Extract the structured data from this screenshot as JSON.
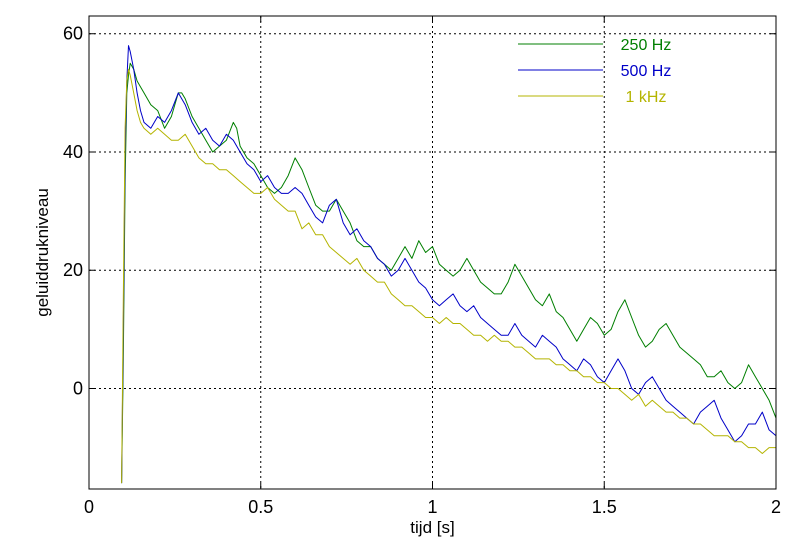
{
  "chart_data": {
    "type": "line",
    "title": "",
    "xlabel": "tijd  [s]",
    "ylabel": "geluiddrukniveau",
    "xlim": [
      0,
      2
    ],
    "ylim": [
      -17,
      63
    ],
    "grid": true,
    "legend_position": "top-right",
    "x_ticks": [
      0,
      0.5,
      1,
      1.5,
      2
    ],
    "x_tick_labels": [
      "0",
      "0.5",
      "1",
      "1.5",
      "2"
    ],
    "y_ticks": [
      0,
      20,
      40,
      60
    ],
    "y_tick_labels": [
      "0",
      "20",
      "40",
      "60"
    ],
    "series": [
      {
        "name": "250 Hz",
        "color": "#007f00",
        "x": [
          0.095,
          0.1,
          0.105,
          0.11,
          0.115,
          0.12,
          0.13,
          0.14,
          0.15,
          0.16,
          0.18,
          0.2,
          0.22,
          0.24,
          0.26,
          0.27,
          0.28,
          0.3,
          0.32,
          0.34,
          0.36,
          0.38,
          0.4,
          0.42,
          0.43,
          0.44,
          0.46,
          0.48,
          0.5,
          0.52,
          0.54,
          0.56,
          0.58,
          0.6,
          0.62,
          0.64,
          0.66,
          0.68,
          0.7,
          0.72,
          0.74,
          0.76,
          0.78,
          0.8,
          0.82,
          0.84,
          0.86,
          0.88,
          0.9,
          0.92,
          0.94,
          0.96,
          0.98,
          1.0,
          1.02,
          1.04,
          1.06,
          1.08,
          1.1,
          1.12,
          1.14,
          1.16,
          1.18,
          1.2,
          1.22,
          1.24,
          1.26,
          1.28,
          1.3,
          1.32,
          1.34,
          1.36,
          1.38,
          1.4,
          1.42,
          1.44,
          1.46,
          1.48,
          1.5,
          1.52,
          1.54,
          1.56,
          1.58,
          1.6,
          1.62,
          1.64,
          1.66,
          1.68,
          1.7,
          1.72,
          1.74,
          1.76,
          1.78,
          1.8,
          1.82,
          1.84,
          1.86,
          1.88,
          1.9,
          1.92,
          1.94,
          1.96,
          1.98,
          2.0
        ],
        "y": [
          -16,
          5,
          35,
          50,
          53,
          55,
          54,
          52,
          51,
          50,
          48,
          47,
          44,
          46,
          50,
          50,
          49,
          46,
          44,
          42,
          40,
          41,
          42,
          45,
          44,
          41,
          39,
          38,
          36,
          34,
          33,
          34,
          36,
          39,
          37,
          34,
          31,
          30,
          30,
          32,
          30,
          28,
          25,
          24,
          24,
          22,
          21,
          20,
          22,
          24,
          22,
          25,
          23,
          24,
          21,
          20,
          19,
          20,
          22,
          20,
          18,
          17,
          16,
          16,
          18,
          21,
          19,
          17,
          15,
          14,
          16,
          13,
          12,
          10,
          8,
          10,
          12,
          11,
          9,
          10,
          13,
          15,
          12,
          9,
          7,
          8,
          10,
          11,
          9,
          7,
          6,
          5,
          4,
          2,
          2,
          3,
          1,
          0,
          1,
          4,
          2,
          0,
          -2,
          -5
        ]
      },
      {
        "name": "500 Hz",
        "color": "#0000c8",
        "x": [
          0.095,
          0.1,
          0.105,
          0.11,
          0.115,
          0.12,
          0.13,
          0.14,
          0.15,
          0.16,
          0.18,
          0.2,
          0.22,
          0.24,
          0.26,
          0.28,
          0.3,
          0.32,
          0.34,
          0.36,
          0.38,
          0.4,
          0.42,
          0.44,
          0.46,
          0.48,
          0.5,
          0.52,
          0.54,
          0.56,
          0.58,
          0.6,
          0.62,
          0.64,
          0.66,
          0.68,
          0.7,
          0.72,
          0.74,
          0.76,
          0.78,
          0.8,
          0.82,
          0.84,
          0.86,
          0.88,
          0.9,
          0.92,
          0.94,
          0.96,
          0.98,
          1.0,
          1.02,
          1.04,
          1.06,
          1.08,
          1.1,
          1.12,
          1.14,
          1.16,
          1.18,
          1.2,
          1.22,
          1.24,
          1.26,
          1.28,
          1.3,
          1.32,
          1.34,
          1.36,
          1.38,
          1.4,
          1.42,
          1.44,
          1.46,
          1.48,
          1.5,
          1.52,
          1.54,
          1.56,
          1.58,
          1.6,
          1.62,
          1.64,
          1.66,
          1.68,
          1.7,
          1.72,
          1.74,
          1.76,
          1.78,
          1.8,
          1.82,
          1.84,
          1.86,
          1.88,
          1.9,
          1.92,
          1.94,
          1.96,
          1.98,
          2.0
        ],
        "y": [
          -16,
          10,
          40,
          52,
          58,
          57,
          54,
          50,
          47,
          45,
          44,
          46,
          45,
          47,
          50,
          48,
          45,
          43,
          44,
          42,
          41,
          43,
          42,
          40,
          38,
          37,
          35,
          36,
          34,
          33,
          33,
          34,
          33,
          31,
          29,
          28,
          31,
          32,
          28,
          26,
          27,
          25,
          24,
          22,
          21,
          19,
          20,
          22,
          20,
          18,
          17,
          15,
          14,
          15,
          16,
          14,
          13,
          14,
          12,
          11,
          10,
          9,
          9,
          11,
          9,
          8,
          7,
          9,
          8,
          7,
          5,
          4,
          3,
          5,
          4,
          2,
          1,
          3,
          5,
          3,
          0,
          -1,
          1,
          2,
          0,
          -2,
          -3,
          -4,
          -5,
          -6,
          -4,
          -3,
          -2,
          -5,
          -7,
          -9,
          -8,
          -6,
          -6,
          -4,
          -7,
          -8
        ]
      },
      {
        "name": "1 kHz",
        "color": "#b4b400",
        "x": [
          0.095,
          0.1,
          0.105,
          0.11,
          0.115,
          0.12,
          0.13,
          0.14,
          0.15,
          0.16,
          0.18,
          0.2,
          0.22,
          0.24,
          0.26,
          0.28,
          0.3,
          0.32,
          0.34,
          0.36,
          0.38,
          0.4,
          0.42,
          0.44,
          0.46,
          0.48,
          0.5,
          0.52,
          0.54,
          0.56,
          0.58,
          0.6,
          0.62,
          0.64,
          0.66,
          0.68,
          0.7,
          0.72,
          0.74,
          0.76,
          0.78,
          0.8,
          0.82,
          0.84,
          0.86,
          0.88,
          0.9,
          0.92,
          0.94,
          0.96,
          0.98,
          1.0,
          1.02,
          1.04,
          1.06,
          1.08,
          1.1,
          1.12,
          1.14,
          1.16,
          1.18,
          1.2,
          1.22,
          1.24,
          1.26,
          1.28,
          1.3,
          1.32,
          1.34,
          1.36,
          1.38,
          1.4,
          1.42,
          1.44,
          1.46,
          1.48,
          1.5,
          1.52,
          1.54,
          1.56,
          1.58,
          1.6,
          1.62,
          1.64,
          1.66,
          1.68,
          1.7,
          1.72,
          1.74,
          1.76,
          1.78,
          1.8,
          1.82,
          1.84,
          1.86,
          1.88,
          1.9,
          1.92,
          1.94,
          1.96,
          1.98,
          2.0
        ],
        "y": [
          -16,
          15,
          44,
          52,
          54,
          53,
          50,
          47,
          45,
          44,
          43,
          44,
          43,
          42,
          42,
          43,
          41,
          39,
          38,
          38,
          37,
          37,
          36,
          35,
          34,
          33,
          33,
          34,
          32,
          31,
          30,
          30,
          27,
          28,
          26,
          26,
          24,
          23,
          22,
          21,
          22,
          20,
          19,
          18,
          18,
          16,
          15,
          14,
          14,
          13,
          12,
          12,
          11,
          12,
          11,
          11,
          10,
          9,
          9,
          8,
          9,
          8,
          8,
          7,
          7,
          6,
          5,
          5,
          5,
          4,
          4,
          3,
          3,
          2,
          2,
          1,
          1,
          0,
          0,
          -1,
          -2,
          -1,
          -3,
          -2,
          -3,
          -4,
          -4,
          -5,
          -5,
          -6,
          -6,
          -7,
          -8,
          -8,
          -8,
          -9,
          -9,
          -10,
          -10,
          -11,
          -10,
          -10
        ]
      }
    ]
  }
}
